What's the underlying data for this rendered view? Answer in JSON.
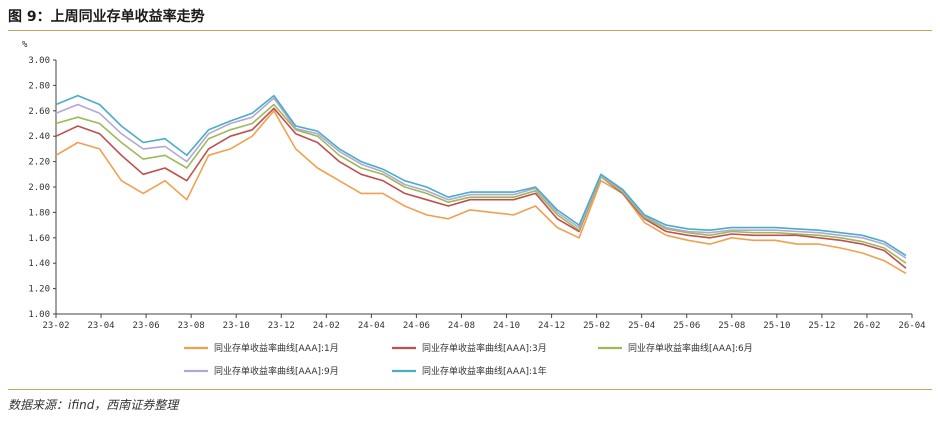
{
  "header": {
    "title": "图 9：上周同业存单收益率走势"
  },
  "footer": {
    "source": "数据来源：ifind，西南证券整理"
  },
  "chart_data": {
    "type": "line",
    "title": "图 9：上周同业存单收益率走势",
    "ylabel": "%",
    "xlabel": "",
    "ylim": [
      1.0,
      3.0
    ],
    "yticks": [
      "1.00",
      "1.20",
      "1.40",
      "1.60",
      "1.80",
      "2.00",
      "2.20",
      "2.40",
      "2.60",
      "2.80",
      "3.00"
    ],
    "xticks": [
      "23-02",
      "23-04",
      "23-06",
      "23-08",
      "23-10",
      "23-12",
      "24-02",
      "24-04",
      "24-06",
      "24-08",
      "24-10",
      "24-12",
      "25-02",
      "25-04",
      "25-06",
      "25-08",
      "25-10",
      "25-12",
      "26-02",
      "26-04"
    ],
    "grid": false,
    "legend_position": "bottom",
    "x": [
      "23-02",
      "23-03",
      "23-04",
      "23-05",
      "23-06",
      "23-07",
      "23-08",
      "23-09",
      "23-10",
      "23-11",
      "23-12",
      "24-01",
      "24-02",
      "24-03",
      "24-04",
      "24-05",
      "24-06",
      "24-07",
      "24-08",
      "24-09",
      "24-10",
      "24-11",
      "24-12",
      "25-01",
      "25-02",
      "25-03",
      "25-04",
      "25-05",
      "25-06",
      "25-07",
      "25-08",
      "25-09",
      "25-10",
      "25-11",
      "25-12",
      "26-01",
      "26-02",
      "26-03",
      "26-04",
      "26-05"
    ],
    "series": [
      {
        "name": "同业存单收益率曲线[AAA]:1月",
        "color": "#f0a050",
        "values": [
          2.25,
          2.35,
          2.3,
          2.05,
          1.95,
          2.05,
          1.9,
          2.25,
          2.3,
          2.4,
          2.6,
          2.3,
          2.15,
          2.05,
          1.95,
          1.95,
          1.85,
          1.78,
          1.75,
          1.82,
          1.8,
          1.78,
          1.85,
          1.68,
          1.6,
          2.05,
          1.95,
          1.72,
          1.62,
          1.58,
          1.55,
          1.6,
          1.58,
          1.58,
          1.55,
          1.55,
          1.52,
          1.48,
          1.42,
          1.32
        ]
      },
      {
        "name": "同业存单收益率曲线[AAA]:3月",
        "color": "#c0504d",
        "values": [
          2.4,
          2.48,
          2.42,
          2.25,
          2.1,
          2.15,
          2.05,
          2.3,
          2.4,
          2.45,
          2.62,
          2.42,
          2.35,
          2.2,
          2.1,
          2.05,
          1.95,
          1.9,
          1.85,
          1.9,
          1.9,
          1.9,
          1.95,
          1.75,
          1.65,
          2.08,
          1.95,
          1.75,
          1.65,
          1.62,
          1.6,
          1.63,
          1.62,
          1.62,
          1.62,
          1.6,
          1.58,
          1.55,
          1.5,
          1.36
        ]
      },
      {
        "name": "同业存单收益率曲线[AAA]:6月",
        "color": "#9bbb59",
        "values": [
          2.5,
          2.55,
          2.5,
          2.35,
          2.22,
          2.25,
          2.15,
          2.38,
          2.45,
          2.5,
          2.65,
          2.45,
          2.4,
          2.25,
          2.15,
          2.1,
          2.0,
          1.95,
          1.88,
          1.92,
          1.92,
          1.92,
          1.97,
          1.78,
          1.66,
          2.08,
          1.96,
          1.76,
          1.67,
          1.64,
          1.62,
          1.65,
          1.64,
          1.64,
          1.63,
          1.62,
          1.6,
          1.57,
          1.52,
          1.4
        ]
      },
      {
        "name": "同业存单收益率曲线[AAA]:9月",
        "color": "#b4a7d6",
        "values": [
          2.58,
          2.65,
          2.58,
          2.42,
          2.3,
          2.32,
          2.2,
          2.42,
          2.5,
          2.55,
          2.7,
          2.46,
          2.42,
          2.28,
          2.18,
          2.12,
          2.02,
          1.97,
          1.9,
          1.94,
          1.94,
          1.94,
          1.99,
          1.8,
          1.68,
          2.09,
          1.97,
          1.77,
          1.68,
          1.65,
          1.64,
          1.66,
          1.66,
          1.66,
          1.65,
          1.64,
          1.62,
          1.6,
          1.55,
          1.44
        ]
      },
      {
        "name": "同业存单收益率曲线[AAA]:1年",
        "color": "#4bacc6",
        "values": [
          2.65,
          2.72,
          2.65,
          2.48,
          2.35,
          2.38,
          2.25,
          2.45,
          2.52,
          2.58,
          2.72,
          2.48,
          2.44,
          2.3,
          2.2,
          2.14,
          2.05,
          2.0,
          1.92,
          1.96,
          1.96,
          1.96,
          2.0,
          1.82,
          1.7,
          2.1,
          1.98,
          1.78,
          1.7,
          1.67,
          1.66,
          1.68,
          1.68,
          1.68,
          1.67,
          1.66,
          1.64,
          1.62,
          1.57,
          1.46
        ]
      }
    ]
  }
}
